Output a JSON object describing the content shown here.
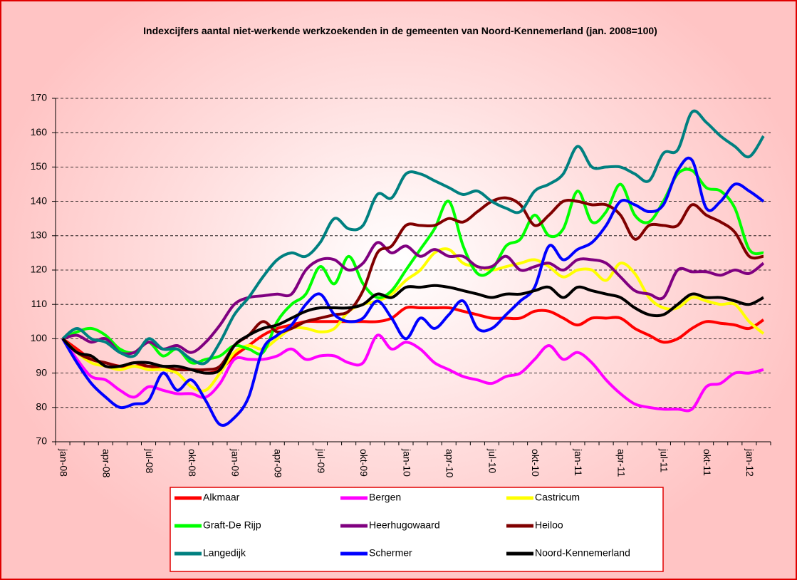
{
  "chart_data": {
    "type": "line",
    "title": "Indexcijfers aantal niet-werkende werkzoekenden in de gemeenten van Noord-Kennemerland (jan. 2008=100)",
    "categories": [
      "jan-08",
      null,
      null,
      "apr-08",
      null,
      null,
      "jul-08",
      null,
      null,
      "okt-08",
      null,
      null,
      "jan-09",
      null,
      null,
      "apr-09",
      null,
      null,
      "jul-09",
      null,
      null,
      "okt-09",
      null,
      null,
      "jan-10",
      null,
      null,
      "apr-10",
      null,
      null,
      "jul-10",
      null,
      null,
      "okt-10",
      null,
      null,
      "jan-11",
      null,
      null,
      "apr-11",
      null,
      null,
      "jul-11",
      null,
      null,
      "okt-11",
      null,
      null,
      "jan-12",
      null
    ],
    "ylim": [
      70,
      170
    ],
    "yticks": [
      70,
      80,
      90,
      100,
      110,
      120,
      130,
      140,
      150,
      160,
      170
    ],
    "grid": true,
    "series": [
      {
        "name": "Alkmaar",
        "color": "#ff0000",
        "values": [
          100,
          97,
          94,
          93,
          92,
          92,
          92,
          91,
          91,
          91,
          90,
          91,
          95,
          98,
          101,
          103,
          104,
          105,
          105,
          105,
          105,
          105,
          105,
          106,
          109,
          109,
          109,
          109,
          108,
          107,
          106,
          106,
          106,
          108,
          108,
          106,
          104,
          106,
          106,
          106,
          103,
          101,
          99,
          100,
          103,
          105,
          104.5,
          104,
          103,
          105.5
        ]
      },
      {
        "name": "Bergen",
        "color": "#ff00ff",
        "values": [
          100,
          94,
          89,
          88,
          85,
          83,
          86,
          85,
          84,
          84,
          83,
          87,
          94,
          94,
          94,
          95,
          97,
          94,
          95,
          95,
          93,
          93,
          101,
          97,
          99,
          97,
          93,
          91,
          89,
          88,
          87,
          89,
          90,
          94,
          98,
          94,
          96,
          93,
          88,
          84,
          81,
          80,
          79.5,
          79.5,
          79.5,
          86,
          87,
          90,
          90,
          91
        ]
      },
      {
        "name": "Castricum",
        "color": "#ffff00",
        "values": [
          100,
          96,
          93,
          92,
          91,
          92,
          91,
          91,
          90,
          86,
          85,
          90,
          96,
          98,
          97,
          100,
          103,
          103,
          102,
          103,
          108,
          110,
          111,
          113,
          117,
          120,
          125,
          126,
          122,
          121,
          120,
          121,
          122,
          123,
          121,
          118,
          120,
          120,
          117,
          122,
          119,
          112,
          109,
          109,
          112,
          111,
          110,
          110,
          105,
          101.5
        ]
      },
      {
        "name": "Graft-De Rijp",
        "color": "#00ff00",
        "values": [
          100,
          102,
          103,
          101,
          97,
          96,
          99,
          95,
          97,
          93,
          94,
          95,
          98,
          97,
          96,
          105,
          110,
          113,
          121,
          116,
          124,
          116,
          112,
          114,
          120,
          126,
          132,
          140,
          127,
          119,
          120,
          127,
          129,
          136,
          130,
          132,
          143,
          134,
          137,
          145,
          136,
          134,
          140,
          148,
          149,
          144,
          143,
          138,
          126,
          125
        ]
      },
      {
        "name": "Heerhugowaard",
        "color": "#800080",
        "values": [
          100,
          101,
          99,
          100,
          96,
          96,
          99,
          97,
          98,
          96,
          99,
          104,
          110,
          112,
          112.5,
          113,
          113,
          120,
          123,
          123,
          120,
          122,
          128,
          125,
          127,
          124,
          126,
          124,
          124,
          121,
          121,
          124,
          120,
          121,
          122,
          120,
          123,
          123,
          122,
          118,
          114,
          113,
          112,
          120,
          119.5,
          119.5,
          118.5,
          120,
          119,
          122
        ]
      },
      {
        "name": "Heiloo",
        "color": "#800000",
        "values": [
          100,
          96,
          94,
          93,
          92,
          93,
          92,
          92,
          91,
          91,
          91,
          92,
          98,
          101,
          105,
          102,
          103,
          105,
          106,
          107,
          108,
          114,
          125,
          127,
          133,
          133,
          133,
          135,
          134,
          137,
          140,
          141,
          139,
          133,
          136,
          140,
          140,
          139,
          139,
          136,
          129,
          133,
          133,
          133,
          139,
          136,
          134,
          131,
          124,
          124
        ]
      },
      {
        "name": "Langedijk",
        "color": "#008080",
        "values": [
          100,
          103,
          100,
          99,
          96,
          95,
          100,
          97,
          97,
          94,
          93,
          99,
          107,
          112,
          118,
          123,
          125,
          124,
          128,
          135,
          132,
          133,
          142,
          141,
          148,
          148,
          146,
          144,
          142,
          143,
          140,
          138,
          137,
          143,
          145,
          148,
          156,
          150,
          150,
          150,
          148,
          146,
          154,
          155,
          166,
          163,
          159,
          156,
          153,
          159
        ]
      },
      {
        "name": "Schermer",
        "color": "#0000ff",
        "values": [
          100,
          93,
          87,
          83,
          80,
          81,
          82,
          90,
          85,
          88,
          82,
          75,
          77,
          83,
          97,
          101,
          104,
          110,
          113,
          107,
          105,
          106,
          111,
          106,
          100,
          106,
          103,
          107,
          111,
          103,
          103,
          107,
          111,
          115,
          127,
          123,
          126,
          128,
          133,
          140,
          139,
          137,
          139,
          149,
          152,
          138,
          140,
          145,
          143,
          140
        ]
      },
      {
        "name": "Noord-Kennemerland",
        "color": "#000000",
        "values": [
          100,
          96,
          95,
          92,
          92,
          93,
          93,
          92,
          92,
          91,
          90,
          91,
          98,
          101,
          103,
          104,
          106,
          108,
          109,
          109,
          109,
          110,
          113,
          112,
          115,
          115,
          115.5,
          115,
          114,
          113,
          112,
          113,
          113,
          114,
          115,
          112,
          115,
          114,
          113,
          112,
          109,
          107,
          107,
          110,
          113,
          112,
          112,
          111,
          110,
          112
        ]
      }
    ]
  }
}
